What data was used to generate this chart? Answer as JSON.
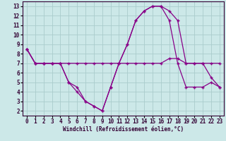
{
  "xlabel": "Windchill (Refroidissement éolien,°C)",
  "bg_color": "#cce8e8",
  "line_color": "#880088",
  "grid_color": "#aacccc",
  "hours": [
    0,
    1,
    2,
    3,
    4,
    5,
    6,
    7,
    8,
    9,
    10,
    11,
    12,
    13,
    14,
    15,
    16,
    17,
    18,
    19,
    20,
    21,
    22,
    23
  ],
  "flat_line": [
    8.5,
    7,
    7,
    7,
    7,
    7,
    7,
    7,
    7,
    7,
    7,
    7,
    7,
    7,
    7,
    7,
    7,
    7.5,
    7.5,
    7,
    7,
    7,
    7,
    7
  ],
  "arch_line": [
    8.5,
    7,
    7,
    7,
    7,
    5,
    4,
    3,
    2.5,
    2,
    4.5,
    7,
    9,
    11.5,
    12.5,
    13,
    13,
    12.5,
    11.5,
    7,
    7,
    7,
    5.5,
    4.5
  ],
  "low_line": [
    8.5,
    7,
    7,
    7,
    7,
    5,
    4.5,
    3,
    2.5,
    2,
    4.5,
    7,
    9,
    11.5,
    12.5,
    13,
    13,
    11.5,
    7,
    4.5,
    4.5,
    4.5,
    5,
    4.5
  ],
  "ylim": [
    1.5,
    13.5
  ],
  "yticks": [
    2,
    3,
    4,
    5,
    6,
    7,
    8,
    9,
    10,
    11,
    12,
    13
  ],
  "xticks": [
    0,
    1,
    2,
    3,
    4,
    5,
    6,
    7,
    8,
    9,
    10,
    11,
    12,
    13,
    14,
    15,
    16,
    17,
    18,
    19,
    20,
    21,
    22,
    23
  ],
  "tick_fontsize": 5.5,
  "label_fontsize": 5.5
}
